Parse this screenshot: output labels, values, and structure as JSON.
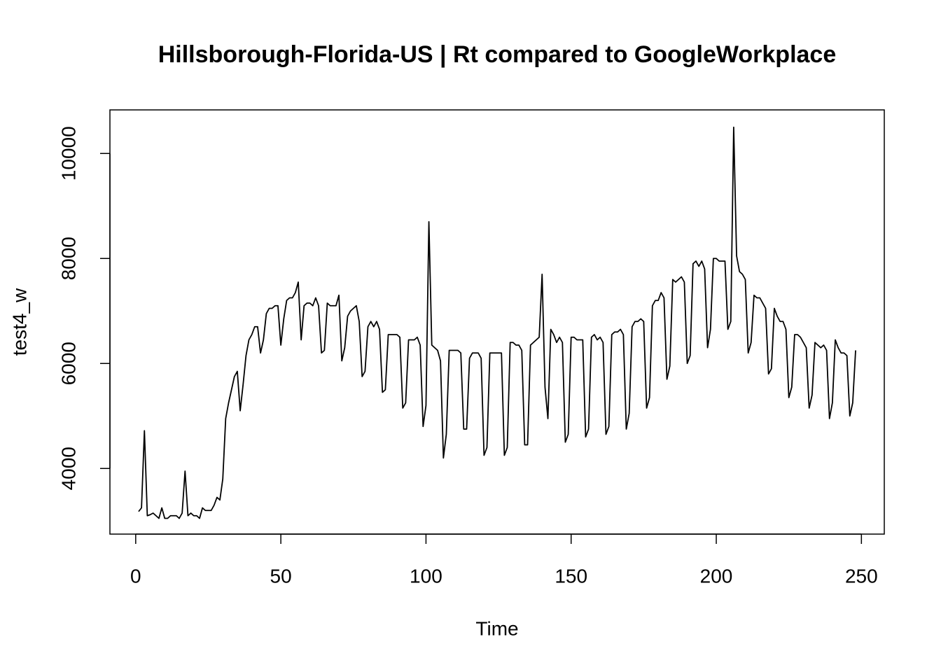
{
  "chart_data": {
    "type": "line",
    "title": "Hillsborough-Florida-US | Rt compared to GoogleWorkplace",
    "xlabel": "Time",
    "ylabel": "test4_w",
    "color": "#000000",
    "grid": false,
    "xlim": [
      -8.88,
      257.88
    ],
    "ylim": [
      2750,
      10830
    ],
    "xticks": [
      0,
      50,
      100,
      150,
      200,
      250
    ],
    "yticks": [
      4000,
      6000,
      8000,
      10000
    ],
    "x": [
      1,
      2,
      3,
      4,
      5,
      6,
      7,
      8,
      9,
      10,
      11,
      12,
      13,
      14,
      15,
      16,
      17,
      18,
      19,
      20,
      21,
      22,
      23,
      24,
      25,
      26,
      27,
      28,
      29,
      30,
      31,
      32,
      33,
      34,
      35,
      36,
      37,
      38,
      39,
      40,
      41,
      42,
      43,
      44,
      45,
      46,
      47,
      48,
      49,
      50,
      51,
      52,
      53,
      54,
      55,
      56,
      57,
      58,
      59,
      60,
      61,
      62,
      63,
      64,
      65,
      66,
      67,
      68,
      69,
      70,
      71,
      72,
      73,
      74,
      75,
      76,
      77,
      78,
      79,
      80,
      81,
      82,
      83,
      84,
      85,
      86,
      87,
      88,
      89,
      90,
      91,
      92,
      93,
      94,
      95,
      96,
      97,
      98,
      99,
      100,
      101,
      102,
      103,
      104,
      105,
      106,
      107,
      108,
      109,
      110,
      111,
      112,
      113,
      114,
      115,
      116,
      117,
      118,
      119,
      120,
      121,
      122,
      123,
      124,
      125,
      126,
      127,
      128,
      129,
      130,
      131,
      132,
      133,
      134,
      135,
      136,
      137,
      138,
      139,
      140,
      141,
      142,
      143,
      144,
      145,
      146,
      147,
      148,
      149,
      150,
      151,
      152,
      153,
      154,
      155,
      156,
      157,
      158,
      159,
      160,
      161,
      162,
      163,
      164,
      165,
      166,
      167,
      168,
      169,
      170,
      171,
      172,
      173,
      174,
      175,
      176,
      177,
      178,
      179,
      180,
      181,
      182,
      183,
      184,
      185,
      186,
      187,
      188,
      189,
      190,
      191,
      192,
      193,
      194,
      195,
      196,
      197,
      198,
      199,
      200,
      201,
      202,
      203,
      204,
      205,
      206,
      207,
      208,
      209,
      210,
      211,
      212,
      213,
      214,
      215,
      216,
      217,
      218,
      219,
      220,
      221,
      222,
      223,
      224,
      225,
      226,
      227,
      228,
      229,
      230,
      231,
      232,
      233,
      234,
      235,
      236,
      237,
      238,
      239,
      240,
      241,
      242,
      243,
      244,
      245,
      246,
      247,
      248
    ],
    "values": [
      3180,
      3250,
      4720,
      3100,
      3120,
      3150,
      3100,
      3050,
      3250,
      3050,
      3050,
      3100,
      3100,
      3100,
      3050,
      3150,
      3950,
      3100,
      3150,
      3100,
      3100,
      3050,
      3250,
      3200,
      3200,
      3200,
      3300,
      3450,
      3400,
      3800,
      4950,
      5250,
      5500,
      5750,
      5850,
      5100,
      5600,
      6150,
      6450,
      6550,
      6700,
      6700,
      6200,
      6450,
      6950,
      7050,
      7050,
      7100,
      7100,
      6350,
      6850,
      7200,
      7250,
      7250,
      7350,
      7550,
      6450,
      7100,
      7150,
      7150,
      7100,
      7250,
      7100,
      6200,
      6250,
      7150,
      7100,
      7100,
      7100,
      7300,
      6050,
      6300,
      6900,
      7000,
      7050,
      7100,
      6800,
      5750,
      5850,
      6700,
      6800,
      6700,
      6800,
      6650,
      5450,
      5500,
      6550,
      6550,
      6550,
      6550,
      6500,
      5150,
      5250,
      6450,
      6450,
      6450,
      6500,
      6350,
      4800,
      5200,
      8700,
      6350,
      6300,
      6250,
      6050,
      4200,
      4650,
      6250,
      6250,
      6250,
      6250,
      6200,
      4750,
      4750,
      6100,
      6200,
      6200,
      6200,
      6100,
      4250,
      4400,
      6200,
      6200,
      6200,
      6200,
      6200,
      4250,
      4400,
      6400,
      6400,
      6350,
      6350,
      6250,
      4450,
      4450,
      6350,
      6400,
      6450,
      6500,
      7700,
      5550,
      4950,
      6650,
      6550,
      6400,
      6500,
      6400,
      4500,
      4650,
      6500,
      6500,
      6450,
      6450,
      6450,
      4600,
      4750,
      6500,
      6550,
      6450,
      6500,
      6400,
      4650,
      4800,
      6550,
      6600,
      6600,
      6650,
      6550,
      4750,
      5050,
      6700,
      6800,
      6800,
      6850,
      6800,
      5150,
      5350,
      7100,
      7200,
      7200,
      7350,
      7250,
      5700,
      5950,
      7600,
      7550,
      7600,
      7650,
      7550,
      6000,
      6150,
      7900,
      7950,
      7850,
      7950,
      7800,
      6300,
      6650,
      8000,
      8000,
      7950,
      7950,
      7950,
      6650,
      6800,
      10500,
      8050,
      7750,
      7700,
      7600,
      6200,
      6400,
      7300,
      7250,
      7250,
      7150,
      7050,
      5800,
      5900,
      7050,
      6900,
      6800,
      6800,
      6650,
      5350,
      5550,
      6550,
      6550,
      6500,
      6400,
      6300,
      5150,
      5400,
      6400,
      6350,
      6300,
      6350,
      6250,
      4950,
      5250,
      6450,
      6300,
      6200,
      6200,
      6150,
      5000,
      5250,
      6250
    ]
  }
}
